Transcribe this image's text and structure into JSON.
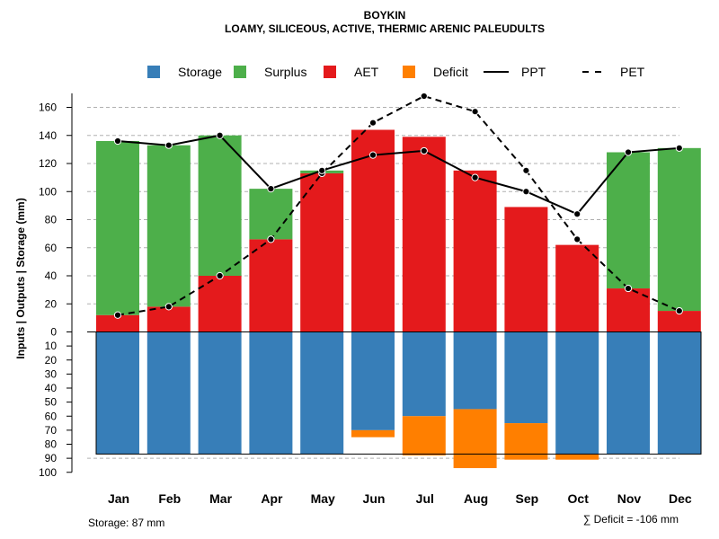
{
  "chart_data": {
    "type": "bar",
    "title": "BOYKIN",
    "subtitle": "LOAMY, SILICEOUS, ACTIVE, THERMIC ARENIC PALEUDULTS",
    "ylabel": "Inputs | Outputs | Storage    (mm)",
    "categories": [
      "Jan",
      "Feb",
      "Mar",
      "Apr",
      "May",
      "Jun",
      "Jul",
      "Aug",
      "Sep",
      "Oct",
      "Nov",
      "Dec"
    ],
    "upper_ticks": [
      "0",
      "20",
      "40",
      "60",
      "80",
      "100",
      "120",
      "140",
      "160"
    ],
    "lower_ticks": [
      "0",
      "10",
      "20",
      "30",
      "40",
      "50",
      "60",
      "70",
      "80",
      "90",
      "100"
    ],
    "upper_ylim": [
      0,
      170
    ],
    "lower_ylim": [
      0,
      100
    ],
    "legend": [
      {
        "name": "Storage",
        "color": "#377eb8",
        "kind": "box"
      },
      {
        "name": "Surplus",
        "color": "#4daf4a",
        "kind": "box"
      },
      {
        "name": "AET",
        "color": "#e41a1c",
        "kind": "box"
      },
      {
        "name": "Deficit",
        "color": "#ff7f00",
        "kind": "box"
      },
      {
        "name": "PPT",
        "color": "#000000",
        "kind": "solid"
      },
      {
        "name": "PET",
        "color": "#000000",
        "kind": "dashed"
      }
    ],
    "series": [
      {
        "name": "AET",
        "values": [
          12,
          18,
          40,
          66,
          113,
          144,
          139,
          115,
          89,
          62,
          31,
          15
        ]
      },
      {
        "name": "Surplus",
        "values": [
          124,
          115,
          100,
          36,
          2,
          0,
          0,
          0,
          0,
          0,
          97,
          116
        ]
      },
      {
        "name": "PPT",
        "values": [
          136,
          133,
          140,
          102,
          115,
          126,
          129,
          110,
          100,
          84,
          128,
          131
        ]
      },
      {
        "name": "PET",
        "values": [
          12,
          18,
          40,
          66,
          113,
          149,
          168,
          157,
          115,
          66,
          31,
          15
        ]
      },
      {
        "name": "Storage",
        "values": [
          87,
          87,
          87,
          87,
          87,
          70,
          60,
          55,
          65,
          87,
          87,
          87
        ]
      },
      {
        "name": "Deficit",
        "values": [
          0,
          0,
          0,
          0,
          0,
          5,
          28,
          42,
          26,
          4,
          0,
          0
        ]
      }
    ],
    "storage_capacity": 87,
    "storage_note": "Storage: 87 mm",
    "deficit_note": "∑ Deficit = -106 mm"
  }
}
